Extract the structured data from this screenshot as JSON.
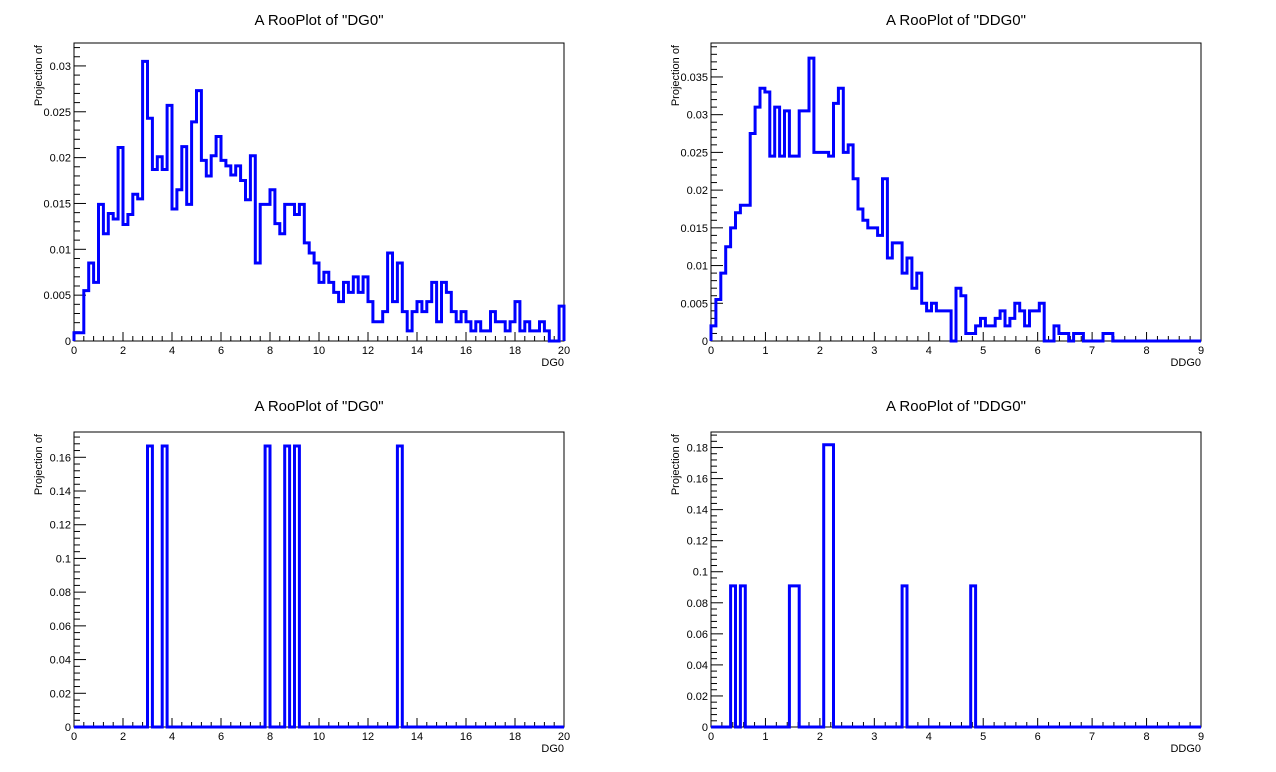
{
  "canvas_bg": "#ffffff",
  "line_color": "#0000ff",
  "chart_data": [
    {
      "type": "line",
      "step": true,
      "title": "A RooPlot of \"DG0\"",
      "xlabel": "DG0",
      "ylabel": "Projection of",
      "xlim": [
        0,
        20
      ],
      "ylim": [
        0,
        0.0325
      ],
      "x_ticks": [
        0,
        2,
        4,
        6,
        8,
        10,
        12,
        14,
        16,
        18,
        20
      ],
      "y_ticks": [
        0,
        0.005,
        0.01,
        0.015,
        0.02,
        0.025,
        0.03
      ],
      "series": [
        {
          "bin_edges_start": 0,
          "bin_width": 0.2,
          "values": [
            0.0009,
            0.0009,
            0.0055,
            0.0085,
            0.0064,
            0.0149,
            0.0117,
            0.0139,
            0.0133,
            0.0211,
            0.0127,
            0.0138,
            0.016,
            0.0155,
            0.0305,
            0.0243,
            0.0187,
            0.0201,
            0.0187,
            0.0257,
            0.0144,
            0.0165,
            0.0212,
            0.0149,
            0.0239,
            0.0273,
            0.0197,
            0.018,
            0.0202,
            0.0223,
            0.0197,
            0.0191,
            0.0181,
            0.0191,
            0.0175,
            0.0154,
            0.0202,
            0.0085,
            0.0149,
            0.0149,
            0.0165,
            0.0128,
            0.0117,
            0.0149,
            0.0149,
            0.0138,
            0.0149,
            0.0107,
            0.0096,
            0.0085,
            0.0064,
            0.0075,
            0.0064,
            0.0053,
            0.0043,
            0.0064,
            0.0053,
            0.007,
            0.0053,
            0.007,
            0.0043,
            0.0021,
            0.0021,
            0.0032,
            0.0096,
            0.0043,
            0.0085,
            0.0032,
            0.0011,
            0.0032,
            0.0043,
            0.0032,
            0.0043,
            0.0064,
            0.0021,
            0.0064,
            0.0053,
            0.0032,
            0.0021,
            0.0032,
            0.0021,
            0.0011,
            0.0021,
            0.0011,
            0.0011,
            0.0032,
            0.0021,
            0.0021,
            0.0011,
            0.0021,
            0.0043,
            0.0011,
            0.0021,
            0.0011,
            0.0011,
            0.0021,
            0.0011,
            0.0,
            0.0,
            0.0038
          ]
        }
      ]
    },
    {
      "type": "line",
      "step": true,
      "title": "A RooPlot of \"DDG0\"",
      "xlabel": "DDG0",
      "ylabel": "Projection of",
      "xlim": [
        0,
        9
      ],
      "ylim": [
        0,
        0.0395
      ],
      "x_ticks": [
        0,
        1,
        2,
        3,
        4,
        5,
        6,
        7,
        8,
        9
      ],
      "y_ticks": [
        0,
        0.005,
        0.01,
        0.015,
        0.02,
        0.025,
        0.03,
        0.035
      ],
      "series": [
        {
          "bin_edges_start": 0,
          "bin_width": 0.09,
          "values": [
            0.002,
            0.0055,
            0.009,
            0.0125,
            0.015,
            0.017,
            0.018,
            0.018,
            0.0275,
            0.031,
            0.0335,
            0.033,
            0.0245,
            0.031,
            0.0245,
            0.0305,
            0.0245,
            0.0245,
            0.0305,
            0.0305,
            0.0375,
            0.025,
            0.025,
            0.025,
            0.0245,
            0.0315,
            0.0335,
            0.025,
            0.026,
            0.0215,
            0.0175,
            0.016,
            0.015,
            0.015,
            0.014,
            0.0215,
            0.011,
            0.013,
            0.013,
            0.009,
            0.011,
            0.007,
            0.009,
            0.005,
            0.004,
            0.005,
            0.004,
            0.004,
            0.004,
            0.0,
            0.007,
            0.006,
            0.001,
            0.001,
            0.002,
            0.003,
            0.002,
            0.002,
            0.003,
            0.004,
            0.002,
            0.003,
            0.005,
            0.004,
            0.002,
            0.004,
            0.004,
            0.005,
            0.0,
            0.0,
            0.002,
            0.001,
            0.001,
            0.0,
            0.001,
            0.001,
            0.0,
            0.0,
            0.0,
            0.0,
            0.001,
            0.001,
            0.0,
            0.0,
            0.0,
            0.0,
            0.0,
            0.0,
            0.0,
            0.0,
            0.0,
            0.0,
            0.0,
            0.0,
            0.0,
            0.0,
            0.0,
            0.0,
            0.0,
            0.0
          ]
        }
      ]
    },
    {
      "type": "line",
      "step": true,
      "title": "A RooPlot of \"DG0\"",
      "xlabel": "DG0",
      "ylabel": "Projection of",
      "xlim": [
        0,
        20
      ],
      "ylim": [
        0,
        0.175
      ],
      "x_ticks": [
        0,
        2,
        4,
        6,
        8,
        10,
        12,
        14,
        16,
        18,
        20
      ],
      "y_ticks": [
        0,
        0.02,
        0.04,
        0.06,
        0.08,
        0.1,
        0.12,
        0.14,
        0.16
      ],
      "series": [
        {
          "bin_edges_start": 0,
          "bin_width": 0.2,
          "values": [
            0,
            0,
            0,
            0,
            0,
            0,
            0,
            0,
            0,
            0,
            0,
            0,
            0,
            0,
            0,
            0.1667,
            0,
            0,
            0.1667,
            0,
            0,
            0,
            0,
            0,
            0,
            0,
            0,
            0,
            0,
            0,
            0,
            0,
            0,
            0,
            0,
            0,
            0,
            0,
            0,
            0.1667,
            0,
            0,
            0,
            0.1667,
            0,
            0.1667,
            0,
            0,
            0,
            0,
            0,
            0,
            0,
            0,
            0,
            0,
            0,
            0,
            0,
            0,
            0,
            0,
            0,
            0,
            0,
            0,
            0.1667,
            0,
            0,
            0,
            0,
            0,
            0,
            0,
            0,
            0,
            0,
            0,
            0,
            0,
            0,
            0,
            0,
            0,
            0,
            0,
            0,
            0,
            0,
            0,
            0,
            0,
            0,
            0,
            0,
            0,
            0,
            0,
            0,
            0
          ]
        }
      ]
    },
    {
      "type": "line",
      "step": true,
      "title": "A RooPlot of \"DDG0\"",
      "xlabel": "DDG0",
      "ylabel": "Projection of",
      "xlim": [
        0,
        9
      ],
      "ylim": [
        0,
        0.19
      ],
      "x_ticks": [
        0,
        1,
        2,
        3,
        4,
        5,
        6,
        7,
        8,
        9
      ],
      "y_ticks": [
        0,
        0.02,
        0.04,
        0.06,
        0.08,
        0.1,
        0.12,
        0.14,
        0.16,
        0.18
      ],
      "series": [
        {
          "bin_edges_start": 0,
          "bin_width": 0.09,
          "values": [
            0,
            0,
            0,
            0,
            0.0909,
            0,
            0.0909,
            0,
            0,
            0,
            0,
            0,
            0,
            0,
            0,
            0,
            0.0909,
            0.0909,
            0,
            0,
            0,
            0,
            0,
            0.1818,
            0.1818,
            0,
            0,
            0,
            0,
            0,
            0,
            0,
            0,
            0,
            0,
            0,
            0,
            0,
            0,
            0.0909,
            0,
            0,
            0,
            0,
            0,
            0,
            0,
            0,
            0,
            0,
            0,
            0,
            0,
            0.0909,
            0,
            0,
            0,
            0,
            0,
            0,
            0,
            0,
            0,
            0,
            0,
            0,
            0,
            0,
            0,
            0,
            0,
            0,
            0,
            0,
            0,
            0,
            0,
            0,
            0,
            0,
            0,
            0,
            0,
            0,
            0,
            0,
            0,
            0,
            0,
            0,
            0,
            0,
            0,
            0,
            0,
            0,
            0,
            0,
            0,
            0
          ]
        }
      ]
    }
  ]
}
